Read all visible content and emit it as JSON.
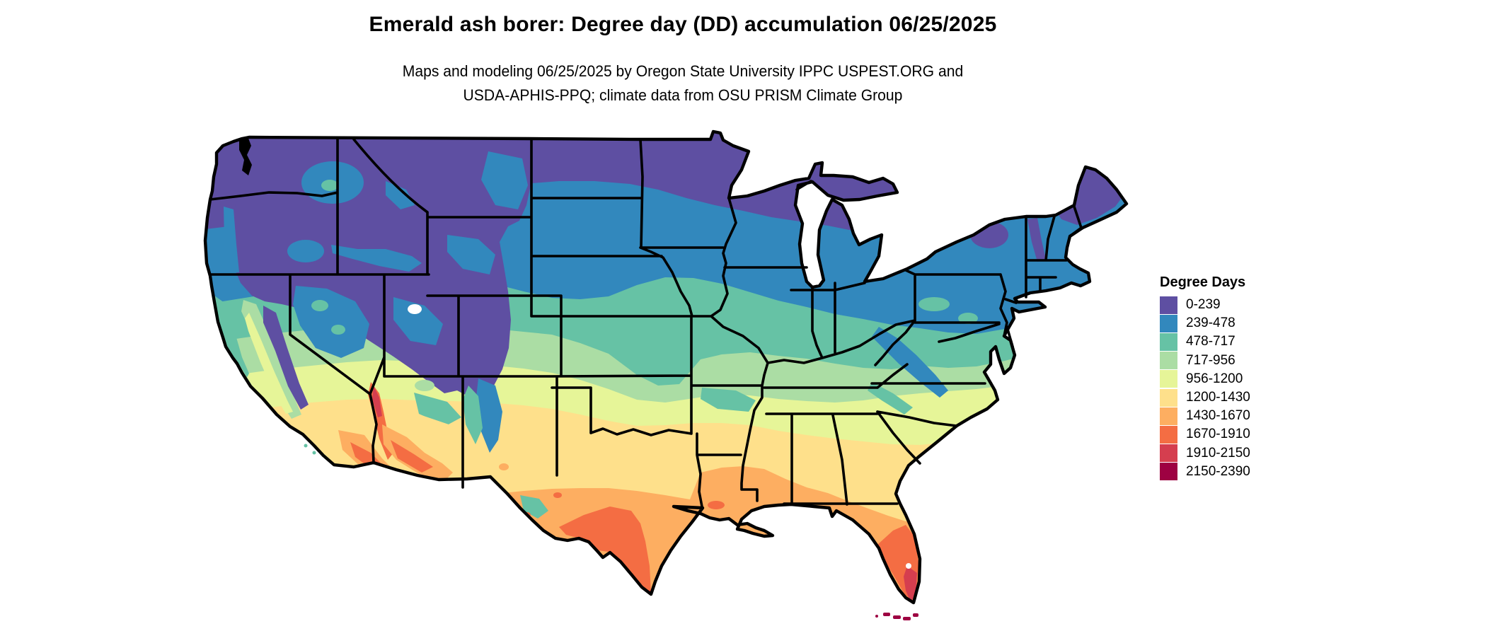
{
  "header": {
    "title": "Emerald ash borer: Degree day (DD) accumulation 06/25/2025",
    "subtitle_line1": "Maps and modeling 06/25/2025 by Oregon State University IPPC USPEST.ORG and",
    "subtitle_line2": "USDA-APHIS-PPQ; climate data from OSU PRISM Climate Group"
  },
  "legend": {
    "title": "Degree Days",
    "entries": [
      {
        "label": "0-239",
        "color": "#5e4fa2"
      },
      {
        "label": "239-478",
        "color": "#3288bd"
      },
      {
        "label": "478-717",
        "color": "#66c2a5"
      },
      {
        "label": "717-956",
        "color": "#abdda4"
      },
      {
        "label": "956-1200",
        "color": "#e6f598"
      },
      {
        "label": "1200-1430",
        "color": "#fee08b"
      },
      {
        "label": "1430-1670",
        "color": "#fdae61"
      },
      {
        "label": "1670-1910",
        "color": "#f46d43"
      },
      {
        "label": "1910-2150",
        "color": "#d53e4f"
      },
      {
        "label": "2150-2390",
        "color": "#9e0142"
      }
    ]
  },
  "map": {
    "region": "Continental United States with state borders",
    "border_color": "#000000",
    "water_color": "#ffffff",
    "gradient_note": "Degree days accumulate from low (purple/blue, north and mountains) to high (orange/red, south Texas, desert Southwest, south Florida)"
  }
}
